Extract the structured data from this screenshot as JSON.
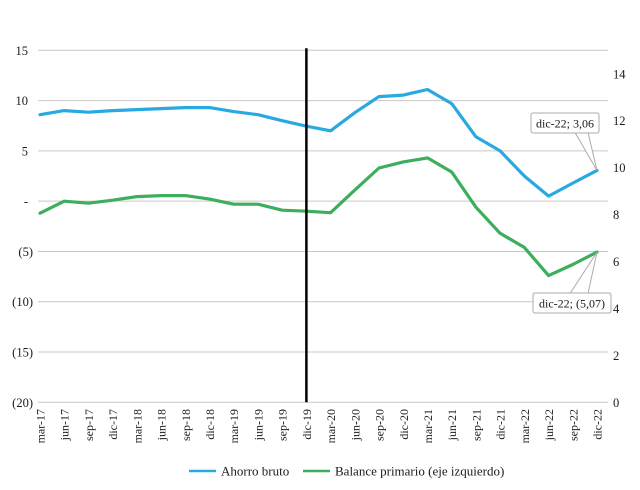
{
  "chart_data": {
    "type": "line",
    "title": "",
    "categories": [
      "mar-17",
      "jun-17",
      "sep-17",
      "dic-17",
      "mar-18",
      "jun-18",
      "sep-18",
      "dic-18",
      "mar-19",
      "jun-19",
      "sep-19",
      "dic-19",
      "mar-20",
      "jun-20",
      "sep-20",
      "dic-20",
      "mar-21",
      "jun-21",
      "sep-21",
      "dic-21",
      "mar-22",
      "jun-22",
      "sep-22",
      "dic-22"
    ],
    "series": [
      {
        "name": "Ahorro bruto",
        "color": "#29A9E1",
        "values": [
          8.6,
          9.0,
          8.85,
          9.0,
          9.1,
          9.2,
          9.3,
          9.3,
          8.9,
          8.6,
          8.0,
          7.45,
          7.0,
          8.8,
          10.4,
          10.55,
          11.1,
          9.7,
          6.4,
          5.0,
          2.5,
          0.5,
          1.8,
          3.06
        ]
      },
      {
        "name": "Balance primario (eje izquierdo)",
        "color": "#3CAE5C",
        "values": [
          -1.2,
          0.0,
          -0.2,
          0.1,
          0.45,
          0.55,
          0.55,
          0.2,
          -0.3,
          -0.3,
          -0.9,
          -1.0,
          -1.15,
          1.1,
          3.3,
          3.9,
          4.3,
          2.9,
          -0.6,
          -3.2,
          -4.6,
          -7.4,
          -6.3,
          -5.07
        ]
      }
    ],
    "left_axis": {
      "tick_labels": [
        "15",
        "10",
        "5",
        "-",
        "(5)",
        "(10)",
        "(15)",
        "(20)"
      ],
      "tick_values": [
        15,
        10,
        5,
        0,
        -5,
        -10,
        -15,
        -20
      ],
      "range": [
        -20,
        15
      ]
    },
    "right_axis": {
      "tick_labels": [
        "14",
        "12",
        "10",
        "8",
        "6",
        "4",
        "2",
        "0"
      ],
      "tick_values": [
        14,
        12,
        10,
        8,
        6,
        4,
        2,
        0
      ],
      "range": [
        0,
        15
      ]
    },
    "divider": {
      "category": "dic-19"
    },
    "annotations": [
      {
        "text": "dic-22; 3,06",
        "series": "Ahorro bruto",
        "category": "dic-22",
        "value": 3.06
      },
      {
        "text": "dic-22; (5,07)",
        "series": "Balance primario (eje izquierdo)",
        "category": "dic-22",
        "value": -5.07
      }
    ],
    "grid": true,
    "legend_position": "bottom"
  },
  "colors": {
    "background": "#FFFFFF",
    "gridline": "#C9C9C9",
    "divider": "#000000",
    "text": "#1A1A1A",
    "annotation_border": "#ABABAB",
    "series_blue": "#29A9E1",
    "series_green": "#3CAE5C"
  }
}
